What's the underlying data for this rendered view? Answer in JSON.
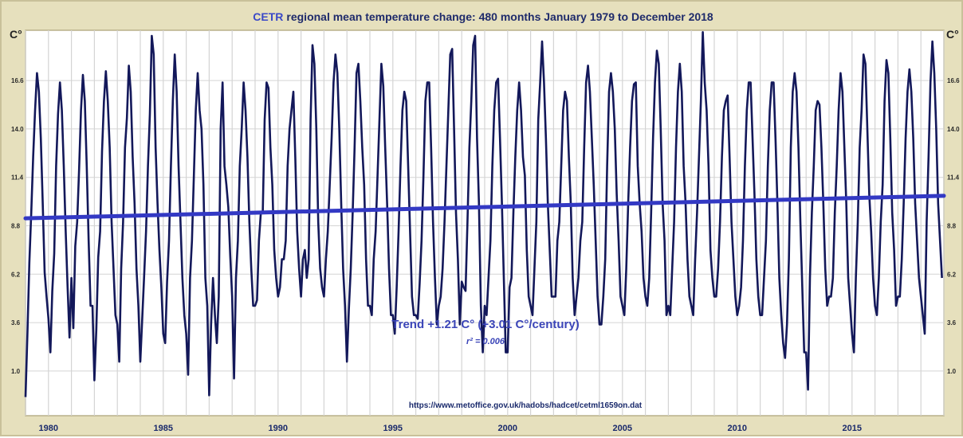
{
  "chart_data": {
    "type": "line",
    "title_source": "CETR",
    "title_rest": "regional mean temperature change: 480 months January 1979 to December 2018",
    "y_unit_left": "C°",
    "y_unit_right": "C°",
    "y_ticks": [
      1.0,
      3.6,
      6.2,
      8.8,
      11.4,
      14.0,
      16.6
    ],
    "y_tick_labels": [
      "1.0",
      "3.6",
      "6.2",
      "8.8",
      "11.4",
      "14.0",
      "16.6"
    ],
    "ylim": [
      -1.4,
      19.3
    ],
    "x_tick_labels": [
      "1980",
      "1985",
      "1990",
      "1995",
      "2000",
      "2005",
      "2010",
      "2015"
    ],
    "x_ticks": [
      1980,
      1985,
      1990,
      1995,
      2000,
      2005,
      2010,
      2015
    ],
    "xlim": [
      1979.0,
      2019.0
    ],
    "grid": true,
    "series": [
      {
        "name": "",
        "color": "#13185a",
        "start": "1979-01",
        "frequency": "monthly",
        "values": [
          -0.4,
          3.0,
          6.8,
          9.5,
          12.5,
          15.0,
          17.0,
          16.0,
          13.5,
          10.0,
          6.3,
          5.0,
          3.8,
          2.0,
          5.3,
          7.3,
          12.0,
          14.8,
          16.5,
          15.0,
          12.0,
          8.5,
          5.5,
          2.8,
          6.0,
          3.3,
          7.7,
          9.0,
          11.8,
          15.0,
          16.9,
          15.5,
          12.0,
          8.0,
          4.5,
          4.5,
          0.5,
          3.2,
          7.1,
          8.5,
          12.8,
          15.5,
          17.1,
          15.5,
          13.0,
          9.0,
          6.5,
          4.0,
          3.5,
          1.5,
          6.5,
          9.0,
          13.0,
          14.6,
          17.4,
          16.0,
          12.5,
          10.0,
          6.5,
          4.5,
          1.5,
          3.8,
          6.1,
          8.5,
          12.0,
          14.8,
          19.0,
          18.0,
          13.0,
          10.0,
          7.5,
          5.5,
          3.0,
          2.5,
          5.8,
          8.0,
          12.0,
          15.5,
          18.0,
          16.0,
          12.0,
          9.0,
          6.0,
          4.0,
          3.0,
          0.8,
          6.0,
          8.0,
          11.5,
          15.0,
          17.0,
          15.0,
          14.0,
          11.0,
          6.0,
          4.5,
          -0.3,
          3.5,
          6.0,
          4.0,
          2.5,
          5.0,
          14.0,
          16.5,
          12.0,
          11.0,
          9.8,
          7.2,
          5.0,
          0.6,
          6.0,
          8.0,
          12.0,
          14.0,
          16.5,
          15.0,
          12.5,
          9.0,
          6.5,
          4.5,
          4.5,
          4.8,
          8.0,
          9.5,
          9.5,
          14.5,
          16.5,
          16.2,
          13.0,
          11.0,
          7.5,
          6.0,
          5.0,
          5.5,
          7.0,
          7.0,
          8.0,
          12.0,
          14.0,
          15.0,
          16.0,
          12.5,
          8.5,
          6.5,
          5.0,
          7.0,
          7.5,
          6.0,
          7.0,
          14.5,
          18.5,
          17.5,
          14.0,
          9.0,
          6.5,
          5.5,
          5.0,
          7.0,
          8.5,
          11.0,
          13.5,
          16.5,
          18.0,
          17.0,
          14.0,
          10.0,
          6.5,
          4.5,
          1.5,
          4.3,
          6.5,
          9.5,
          13.0,
          17.0,
          17.5,
          15.5,
          13.0,
          11.0,
          7.0,
          4.5,
          4.5,
          4.0,
          7.0,
          8.5,
          11.5,
          14.5,
          17.5,
          16.3,
          13.0,
          10.0,
          6.5,
          4.0,
          4.0,
          3.0,
          5.5,
          8.5,
          12.0,
          15.0,
          16.0,
          15.5,
          12.0,
          8.5,
          5.0,
          4.0,
          4.0,
          3.8,
          5.7,
          8.0,
          11.5,
          15.5,
          16.5,
          16.5,
          13.0,
          9.0,
          6.0,
          3.5,
          4.5,
          5.0,
          6.5,
          9.0,
          12.0,
          15.0,
          18.0,
          18.3,
          14.0,
          9.5,
          7.0,
          3.5,
          5.8,
          5.5,
          5.3,
          9.0,
          13.0,
          15.5,
          18.5,
          19.0,
          13.5,
          10.0,
          4.5,
          2.0,
          4.5,
          4.0,
          6.0,
          8.0,
          12.0,
          15.0,
          16.5,
          16.7,
          13.5,
          10.0,
          6.0,
          2.0,
          2.0,
          5.5,
          6.0,
          9.5,
          12.5,
          15.0,
          16.5,
          15.0,
          12.5,
          11.5,
          7.5,
          5.0,
          4.5,
          4.0,
          6.5,
          9.0,
          14.5,
          16.5,
          18.7,
          16.5,
          13.5,
          10.0,
          7.5,
          5.0,
          5.0,
          5.0,
          8.0,
          9.0,
          12.0,
          15.0,
          16.0,
          15.5,
          12.5,
          10.0,
          6.0,
          4.0,
          5.0,
          6.0,
          8.0,
          9.0,
          13.0,
          16.5,
          17.4,
          16.0,
          13.5,
          11.0,
          8.0,
          5.0,
          3.5,
          3.5,
          5.0,
          7.0,
          12.0,
          16.0,
          17.0,
          16.0,
          14.0,
          10.5,
          8.0,
          5.0,
          4.5,
          4.0,
          6.5,
          10.0,
          13.0,
          15.5,
          16.4,
          16.5,
          12.0,
          10.0,
          8.5,
          6.0,
          5.0,
          4.5,
          6.0,
          9.5,
          13.5,
          16.5,
          18.2,
          17.5,
          14.0,
          10.0,
          8.0,
          4.0,
          4.5,
          4.0,
          6.5,
          9.0,
          13.0,
          16.0,
          17.5,
          16.0,
          12.0,
          10.0,
          7.0,
          5.0,
          4.5,
          4.0,
          7.0,
          9.5,
          12.5,
          15.5,
          19.2,
          16.5,
          15.0,
          12.0,
          7.5,
          6.0,
          5.0,
          5.0,
          6.5,
          9.0,
          12.5,
          15.0,
          15.5,
          15.8,
          12.5,
          9.0,
          7.0,
          5.0,
          4.0,
          4.5,
          5.5,
          8.0,
          12.0,
          15.0,
          16.5,
          16.5,
          13.5,
          10.5,
          7.0,
          5.0,
          4.0,
          4.0,
          6.0,
          8.0,
          12.0,
          15.0,
          16.5,
          16.5,
          13.5,
          10.0,
          6.0,
          4.0,
          2.5,
          1.7,
          3.5,
          7.0,
          13.0,
          16.0,
          17.0,
          16.0,
          13.0,
          9.0,
          5.5,
          2.0,
          2.0,
          0.0,
          6.0,
          9.5,
          12.0,
          15.0,
          15.5,
          15.3,
          13.0,
          10.0,
          6.5,
          4.5,
          5.0,
          5.0,
          6.0,
          9.5,
          12.0,
          15.0,
          17.0,
          16.0,
          13.0,
          10.0,
          6.0,
          4.5,
          3.0,
          2.0,
          6.0,
          9.0,
          13.0,
          15.0,
          18.0,
          17.5,
          14.0,
          10.5,
          8.5,
          6.0,
          4.5,
          4.0,
          6.0,
          9.0,
          11.0,
          15.5,
          17.7,
          17.0,
          13.5,
          9.5,
          7.5,
          4.5,
          5.0,
          5.0,
          7.0,
          10.0,
          13.5,
          16.0,
          17.2,
          16.0,
          13.5,
          10.0,
          8.0,
          6.0,
          5.0,
          4.0,
          3.0,
          9.0,
          12.5,
          16.5,
          18.7,
          17.0,
          14.0,
          10.0,
          8.0,
          6.0
        ]
      },
      {
        "name": "",
        "kind": "trend",
        "color": "#3339c4",
        "x": [
          1979.0,
          2019.0
        ],
        "y": [
          9.2,
          10.41
        ]
      }
    ],
    "annotations": {
      "trend_text": "Trend +1.21 C° (+3.01 C°/century)",
      "r2_text": "r² = 0.006",
      "source_url": "https://www.metoffice.gov.uk/hadobs/hadcet/cetml1659on.dat"
    }
  }
}
